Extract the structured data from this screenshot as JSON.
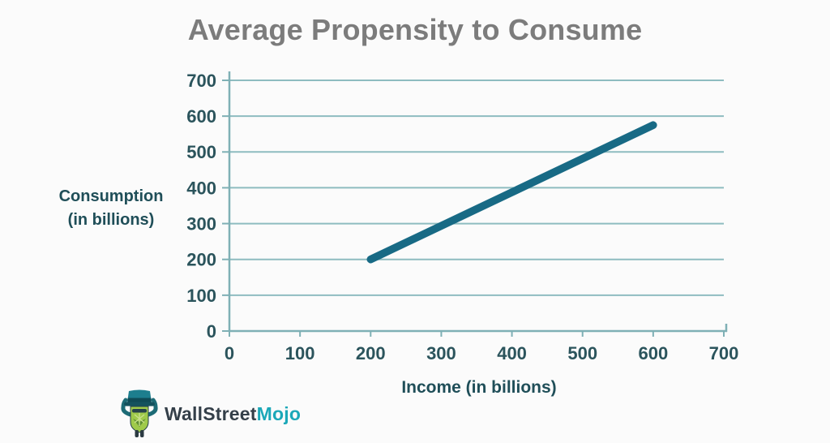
{
  "title": "Average Propensity to Consume",
  "chart_data": {
    "type": "line",
    "title": "Average Propensity to Consume",
    "xlabel": "Income (in billions)",
    "ylabel": "Consumption (in billions)",
    "xlim": [
      0,
      700
    ],
    "ylim": [
      0,
      700
    ],
    "xticks": [
      0,
      100,
      200,
      300,
      400,
      500,
      600,
      700
    ],
    "yticks": [
      0,
      100,
      200,
      300,
      400,
      500,
      600,
      700
    ],
    "grid": "horizontal",
    "legend": "none",
    "series": [
      {
        "name": "consumption-line",
        "points": [
          [
            200,
            200
          ],
          [
            600,
            575
          ]
        ],
        "color": "#186a85"
      }
    ]
  },
  "axis_titles": {
    "y_line1": "Consumption",
    "y_line2": "(in billions)",
    "x": "Income (in billions)"
  },
  "logo": {
    "brand_part1": "WallStreet",
    "brand_part2": "Mojo",
    "mascot_icon": "wallstreetmojo-mascot",
    "brand_color_dark": "#343f49",
    "brand_color_teal": "#1ba8b8"
  },
  "colors": {
    "background": "#fbfbfb",
    "title": "#7c7c7c",
    "grid": "#8ebcc0",
    "axis": "#7fb0b5",
    "tick_label": "#2b545c",
    "axis_title": "#1f4e58",
    "line": "#186a85"
  }
}
